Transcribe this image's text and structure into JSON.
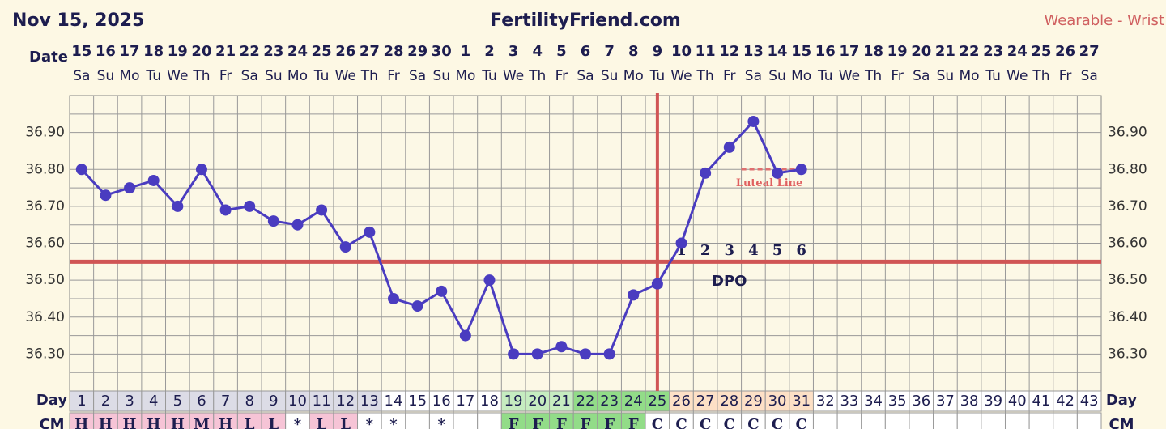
{
  "chart_data": {
    "type": "line",
    "title": "FertilityFriend.com",
    "chart_date": "Nov 15, 2025",
    "source": "Wearable - Wrist",
    "date_label": "Date",
    "dates": [
      15,
      16,
      17,
      18,
      19,
      20,
      21,
      22,
      23,
      24,
      25,
      26,
      27,
      28,
      29,
      30,
      1,
      2,
      3,
      4,
      5,
      6,
      7,
      8,
      9,
      10,
      11,
      12,
      13,
      14,
      15,
      16,
      17,
      18,
      19,
      20,
      21,
      22,
      23,
      24,
      25,
      26,
      27
    ],
    "weekdays": [
      "Sa",
      "Su",
      "Mo",
      "Tu",
      "We",
      "Th",
      "Fr",
      "Sa",
      "Su",
      "Mo",
      "Tu",
      "We",
      "Th",
      "Fr",
      "Sa",
      "Su",
      "Mo",
      "Tu",
      "We",
      "Th",
      "Fr",
      "Sa",
      "Su",
      "Mo",
      "Tu",
      "We",
      "Th",
      "Fr",
      "Sa",
      "Su",
      "Mo",
      "Tu",
      "We",
      "Th",
      "Fr",
      "Sa",
      "Su",
      "Mo",
      "Tu",
      "We",
      "Th",
      "Fr",
      "Sa"
    ],
    "day_label": "Day",
    "days": [
      1,
      2,
      3,
      4,
      5,
      6,
      7,
      8,
      9,
      10,
      11,
      12,
      13,
      14,
      15,
      16,
      17,
      18,
      19,
      20,
      21,
      22,
      23,
      24,
      25,
      26,
      27,
      28,
      29,
      30,
      31,
      32,
      33,
      34,
      35,
      36,
      37,
      38,
      39,
      40,
      41,
      42,
      43
    ],
    "day_shading": [
      {
        "from": 1,
        "to": 13,
        "color": "#dcdce6"
      },
      {
        "from": 19,
        "to": 21,
        "color": "#c6ecc0"
      },
      {
        "from": 22,
        "to": 25,
        "color": "#92dc88"
      },
      {
        "from": 26,
        "to": 31,
        "color": "#fde0c6"
      }
    ],
    "cm_label": "CM",
    "cm": [
      "H",
      "H",
      "H",
      "H",
      "H",
      "M",
      "H",
      "L",
      "L",
      "*",
      "L",
      "L",
      "*",
      "*",
      null,
      "*",
      null,
      null,
      "F",
      "F",
      "F",
      "F",
      "F",
      "F",
      "C",
      "C",
      "C",
      "C",
      "C",
      "C",
      "C",
      null,
      null,
      null,
      null,
      null,
      null,
      null,
      null,
      null,
      null,
      null,
      null
    ],
    "cm_colors": {
      "H": "#f6c4d6",
      "M": "#f6c4d6",
      "L": "#f6c4d6",
      "F": "#92dc88"
    },
    "series": [
      {
        "color": "#4a3cc0",
        "values": [
          36.8,
          36.73,
          36.75,
          36.77,
          36.7,
          36.8,
          36.69,
          36.7,
          36.66,
          36.65,
          36.69,
          36.59,
          36.63,
          36.45,
          36.43,
          36.47,
          36.35,
          36.5,
          36.3,
          36.3,
          36.32,
          36.3,
          36.3,
          36.46,
          36.49,
          36.6,
          36.79,
          36.86,
          36.93,
          36.79,
          36.8,
          null,
          null,
          null,
          null,
          null,
          null,
          null,
          null,
          null,
          null,
          null,
          null
        ]
      }
    ],
    "ylim": [
      36.2,
      37.0
    ],
    "yticks": [
      {
        "value": 36.3,
        "label": "36.30"
      },
      {
        "value": 36.4,
        "label": "36.40"
      },
      {
        "value": 36.5,
        "label": "36.50"
      },
      {
        "value": 36.6,
        "label": "36.60"
      },
      {
        "value": 36.7,
        "label": "36.70"
      },
      {
        "value": 36.8,
        "label": "36.80"
      },
      {
        "value": 36.9,
        "label": "36.90"
      }
    ],
    "grid": true,
    "coverline": 36.55,
    "ovulation_day": 25,
    "dpo_label": "DPO",
    "dpo_days": [
      1,
      2,
      3,
      4,
      5,
      6
    ],
    "luteal_line": {
      "label": "Luteal Line",
      "value": 36.8
    },
    "accent_color": "#d05555"
  }
}
